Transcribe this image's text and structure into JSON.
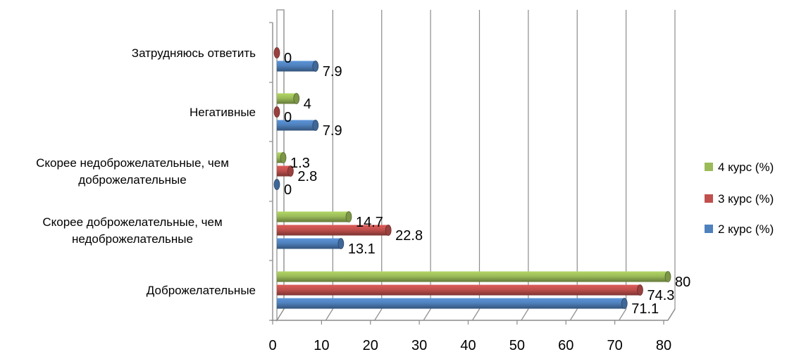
{
  "chart_data": {
    "type": "bar",
    "orientation": "horizontal",
    "style": "3d-cylinder",
    "grid": true,
    "legend_position": "right",
    "categories": [
      [
        "Доброжелательные"
      ],
      [
        "Скорее доброжелательные, чем",
        "недоброжелательные"
      ],
      [
        "Скорее недоброжелательные, чем",
        "доброжелательные"
      ],
      [
        "Негативные"
      ],
      [
        "Затрудняюсь ответить"
      ]
    ],
    "series": [
      {
        "name": "2 курс (%)",
        "color": "#4F81BD",
        "values": [
          71.1,
          13.1,
          0,
          7.9,
          7.9
        ]
      },
      {
        "name": "3 курс (%)",
        "color": "#C0504D",
        "values": [
          74.3,
          22.8,
          2.8,
          0,
          0
        ]
      },
      {
        "name": "4 курс (%)",
        "color": "#9BBB59",
        "values": [
          80,
          14.7,
          1.3,
          4,
          null
        ]
      }
    ],
    "xlim": [
      0,
      80
    ],
    "xticks": [
      0,
      10,
      20,
      30,
      40,
      50,
      60,
      70,
      80
    ],
    "xlabel": "",
    "ylabel": "",
    "title": ""
  }
}
